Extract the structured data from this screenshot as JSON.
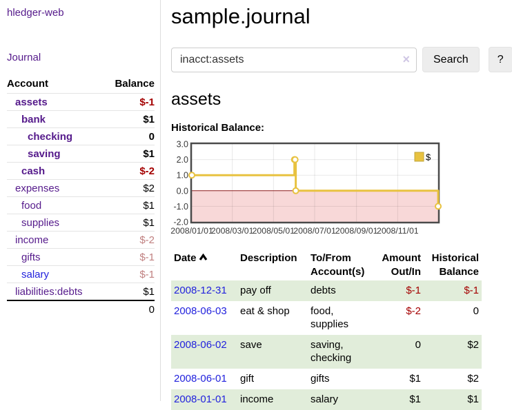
{
  "sidebar": {
    "title": "hledger-web",
    "journal_link": "Journal",
    "accounts": {
      "col_account": "Account",
      "col_balance": "Balance",
      "rows": [
        {
          "name": "assets",
          "indent": 0,
          "bold": true,
          "balance": "$-1",
          "neg": "strong"
        },
        {
          "name": "bank",
          "indent": 1,
          "bold": true,
          "balance": "$1",
          "neg": "none"
        },
        {
          "name": "checking",
          "indent": 2,
          "bold": true,
          "balance": "0",
          "neg": "none"
        },
        {
          "name": "saving",
          "indent": 2,
          "bold": true,
          "balance": "$1",
          "neg": "none"
        },
        {
          "name": "cash",
          "indent": 1,
          "bold": true,
          "balance": "$-2",
          "neg": "strong"
        },
        {
          "name": "expenses",
          "indent": 0,
          "bold": false,
          "balance": "$2",
          "neg": "none"
        },
        {
          "name": "food",
          "indent": 1,
          "bold": false,
          "balance": "$1",
          "neg": "none"
        },
        {
          "name": "supplies",
          "indent": 1,
          "bold": false,
          "balance": "$1",
          "neg": "none"
        },
        {
          "name": "income",
          "indent": 0,
          "bold": false,
          "balance": "$-2",
          "neg": "soft"
        },
        {
          "name": "gifts",
          "indent": 1,
          "bold": false,
          "balance": "$-1",
          "neg": "soft"
        },
        {
          "name": "salary",
          "indent": 1,
          "bold": false,
          "balance": "$-1",
          "neg": "soft",
          "link": "blue"
        },
        {
          "name": "liabilities:debts",
          "indent": 0,
          "bold": false,
          "balance": "$1",
          "neg": "none"
        }
      ],
      "total": "0"
    }
  },
  "header": {
    "title": "sample.journal"
  },
  "search": {
    "value": "inacct:assets",
    "clear_icon": "×",
    "search_button": "Search",
    "help_button": "?"
  },
  "content": {
    "account_heading": "assets",
    "chart_title": "Historical Balance:"
  },
  "chart_data": {
    "type": "line",
    "title": "Historical Balance:",
    "legend_label": "$",
    "series": [
      {
        "name": "$",
        "color": "#e8c240",
        "step": true,
        "points": [
          {
            "date": "2008-01-01",
            "day": 0,
            "value": 1
          },
          {
            "date": "2008-06-01",
            "day": 152,
            "value": 2
          },
          {
            "date": "2008-06-02",
            "day": 153,
            "value": 2
          },
          {
            "date": "2008-06-03",
            "day": 154,
            "value": 0
          },
          {
            "date": "2008-12-31",
            "day": 365,
            "value": -1
          }
        ]
      }
    ],
    "x_ticks": [
      {
        "label": "2008/01/01",
        "day": 0
      },
      {
        "label": "2008/03/01",
        "day": 60
      },
      {
        "label": "2008/05/01",
        "day": 121
      },
      {
        "label": "2008/07/01",
        "day": 182
      },
      {
        "label": "2008/09/01",
        "day": 244
      },
      {
        "label": "2008/11/01",
        "day": 305
      }
    ],
    "y_ticks": [
      {
        "label": "3.0",
        "value": 3
      },
      {
        "label": "2.0",
        "value": 2
      },
      {
        "label": "1.0",
        "value": 1
      },
      {
        "label": "0.0",
        "value": 0
      },
      {
        "label": "-1.0",
        "value": -1
      },
      {
        "label": "-2.0",
        "value": -2
      }
    ],
    "ylim": [
      -2,
      3
    ],
    "x_range_days": [
      0,
      365
    ],
    "grid": true,
    "legend_position": "top-right",
    "negative_region_color": "#f8d8d8",
    "zero_line_color": "#8b1a1a",
    "border_color": "#4a4a4a",
    "grid_color": "rgba(0,0,0,0.09)",
    "tick_label_color": "#3a3a3a"
  },
  "register": {
    "headers": {
      "date": "Date",
      "description": "Description",
      "accounts": "To/From Account(s)",
      "amount": "Amount Out/In",
      "balance": "Historical Balance"
    },
    "rows": [
      {
        "date": "2008-12-31",
        "description": "pay off",
        "accounts": "debts",
        "amount": "$-1",
        "amount_neg": true,
        "balance": "$-1",
        "balance_neg": true,
        "striped": true
      },
      {
        "date": "2008-06-03",
        "description": "eat & shop",
        "accounts": "food, supplies",
        "amount": "$-2",
        "amount_neg": true,
        "balance": "0",
        "balance_neg": false,
        "striped": false
      },
      {
        "date": "2008-06-02",
        "description": "save",
        "accounts": "saving, checking",
        "amount": "0",
        "amount_neg": false,
        "balance": "$2",
        "balance_neg": false,
        "striped": true
      },
      {
        "date": "2008-06-01",
        "description": "gift",
        "accounts": "gifts",
        "amount": "$1",
        "amount_neg": false,
        "balance": "$2",
        "balance_neg": false,
        "striped": false
      },
      {
        "date": "2008-01-01",
        "description": "income",
        "accounts": "salary",
        "amount": "$1",
        "amount_neg": false,
        "balance": "$1",
        "balance_neg": false,
        "striped": true
      }
    ]
  },
  "colors": {
    "link_purple": "#551a8b",
    "link_blue": "#2222dd",
    "negative_strong": "#a40000",
    "negative_soft": "#c08080",
    "row_stripe_green": "#e1edda",
    "chart_line_gold": "#e8c240",
    "chart_negative_pink": "#f8d8d8",
    "chart_zero_line": "#8b1a1a",
    "button_bg": "#ededed"
  }
}
